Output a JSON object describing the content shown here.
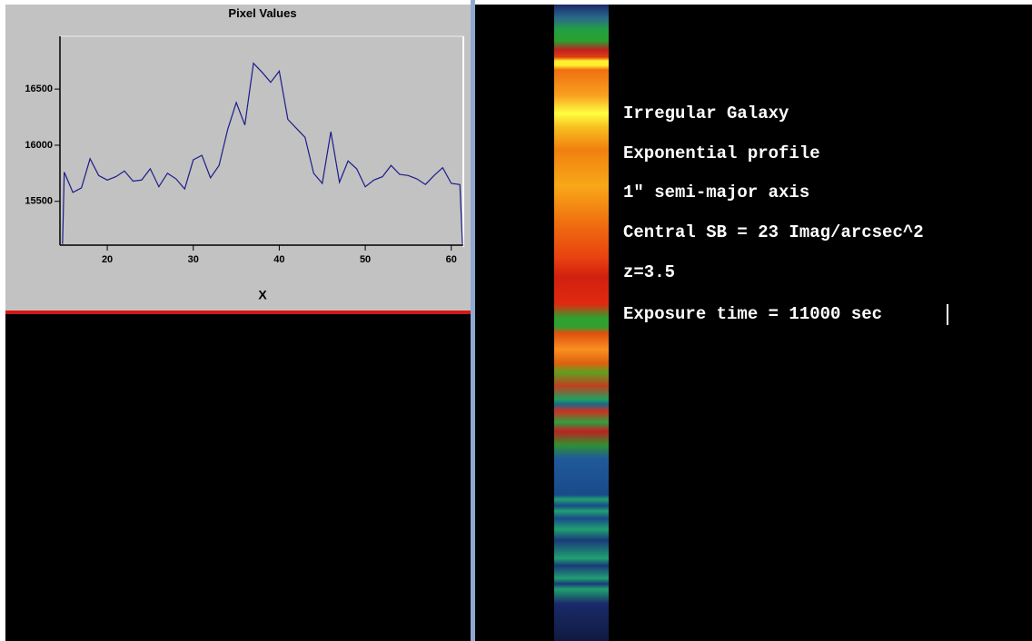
{
  "chart_data": {
    "type": "line",
    "title": "Pixel Values",
    "x_label": "X",
    "x": [
      14.8,
      15,
      16,
      17,
      18,
      19,
      20,
      21,
      22,
      23,
      24,
      25,
      26,
      27,
      28,
      29,
      30,
      31,
      32,
      33,
      34,
      35,
      36,
      37,
      38,
      39,
      40,
      41,
      42,
      43,
      44,
      45,
      46,
      47,
      48,
      49,
      50,
      51,
      52,
      53,
      54,
      55,
      56,
      57,
      58,
      59,
      60,
      61,
      61.3
    ],
    "series": [
      {
        "color": "#1c1c8a",
        "values": [
          15120,
          15760,
          15580,
          15620,
          15880,
          15730,
          15690,
          15720,
          15770,
          15680,
          15690,
          15790,
          15630,
          15750,
          15700,
          15610,
          15870,
          15910,
          15710,
          15820,
          16140,
          16380,
          16180,
          16730,
          16650,
          16560,
          16660,
          16230,
          16150,
          16070,
          15750,
          15660,
          16120,
          15670,
          15860,
          15790,
          15630,
          15690,
          15720,
          15820,
          15740,
          15730,
          15700,
          15650,
          15730,
          15800,
          15660,
          15650,
          15120
        ]
      }
    ],
    "xlim": [
      14.5,
      61.4
    ],
    "xticks": [
      20,
      30,
      40,
      50,
      60
    ],
    "ylim": [
      15110,
      16970
    ],
    "yticks": [
      15500,
      16000,
      16500
    ]
  },
  "annotations": [
    "Irregular Galaxy",
    "Exponential profile",
    "1\" semi-major axis",
    "Central SB = 23 Imag/arcsec^2",
    "z=3.5",
    "Exposure time = 11000 sec"
  ]
}
